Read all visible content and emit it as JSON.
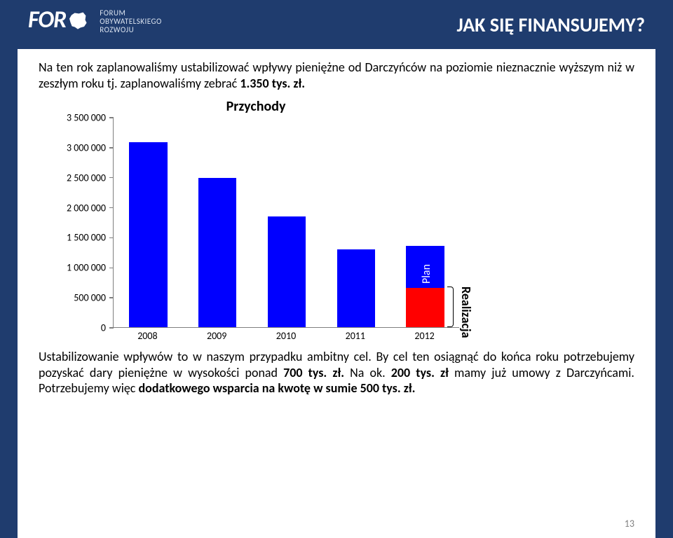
{
  "header": {
    "background_color": "#1f3c6e",
    "logo_text": "FOR",
    "logo_sub_line1": "FORUM",
    "logo_sub_line2": "OBYWATELSKIEGO",
    "logo_sub_line3": "ROZWOJU",
    "title": "JAK SIĘ FINANSUJEMY?"
  },
  "para1": {
    "t1": "Na ten rok zaplanowaliśmy  ustabilizować wpływy pieniężne od Darczyńców na poziomie nieznacznie wyższym niż w zeszłym roku tj. zaplanowaliśmy zebrać ",
    "b1": "1.350 tys. zł."
  },
  "chart": {
    "type": "bar",
    "title": "Przychody",
    "title_fontsize": 20,
    "ylim": [
      0,
      3500000
    ],
    "ytick_step": 500000,
    "y_ticks": [
      "0",
      "500 000",
      "1 000 000",
      "1 500 000",
      "2 000 000",
      "2 500 000",
      "3 000 000",
      "3 500 000"
    ],
    "categories": [
      "2008",
      "2009",
      "2010",
      "2011",
      "2012"
    ],
    "values": [
      3080000,
      2480000,
      1840000,
      1290000,
      1350000
    ],
    "realization_2012": 650000,
    "bar_color": "#0000ff",
    "realization_color": "#ff0000",
    "background_color": "#ffffff",
    "axis_color": "#7f7f7f",
    "label_fontsize": 14,
    "bar_width_ratio": 0.55,
    "plan_label": "Plan",
    "realization_label": "Realizacja"
  },
  "para2": {
    "t1": "Ustabilizowanie wpływów to w naszym przypadku ambitny cel.  By cel ten osiągnąć do końca roku potrzebujemy pozyskać dary pieniężne w wysokości ponad ",
    "b1": "700 tys. zł.",
    "t2": " Na ok. ",
    "b2": "200 tys. zł",
    "t3": " mamy już umowy z Darczyńcami. Potrzebujemy więc ",
    "b3": "dodatkowego wsparcia  na kwotę w sumie  500 tys. zł."
  },
  "page_number": "13"
}
